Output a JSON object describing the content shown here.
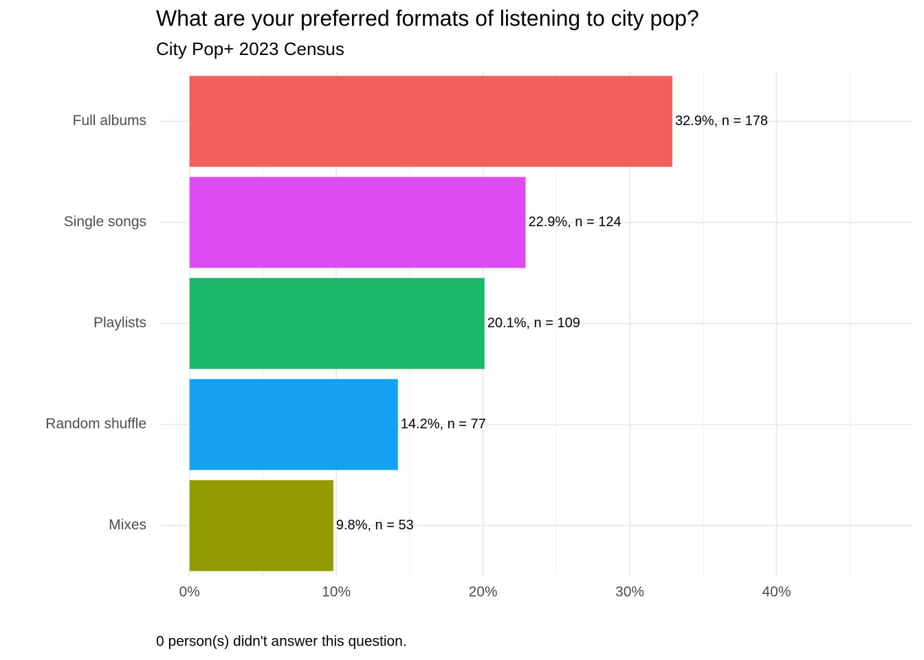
{
  "chart_data": {
    "type": "barh",
    "title": "What are your preferred formats of listening to city pop?",
    "subtitle": "City Pop+ 2023 Census",
    "caption": "0 person(s) didn't answer this question.",
    "categories": [
      "Full albums",
      "Single songs",
      "Playlists",
      "Random shuffle",
      "Mixes"
    ],
    "values": [
      32.9,
      22.9,
      20.1,
      14.2,
      9.8
    ],
    "value_labels": [
      "32.9%, n = 178",
      "22.9%, n = 124",
      "20.1%, n = 109",
      "14.2%, n = 77",
      "9.8%, n = 53"
    ],
    "colors": [
      "#f2605c",
      "#df4bf2",
      "#1bb76b",
      "#17a1f2",
      "#939b03"
    ],
    "xlim": [
      -2.0,
      49.3
    ],
    "xticks": [
      {
        "value": 0,
        "label": "0%"
      },
      {
        "value": 10,
        "label": "10%"
      },
      {
        "value": 20,
        "label": "20%"
      },
      {
        "value": 30,
        "label": "30%"
      },
      {
        "value": 40,
        "label": "40%"
      }
    ],
    "x_minor_ticks": [
      5,
      15,
      25,
      35,
      45
    ],
    "grid": true
  }
}
